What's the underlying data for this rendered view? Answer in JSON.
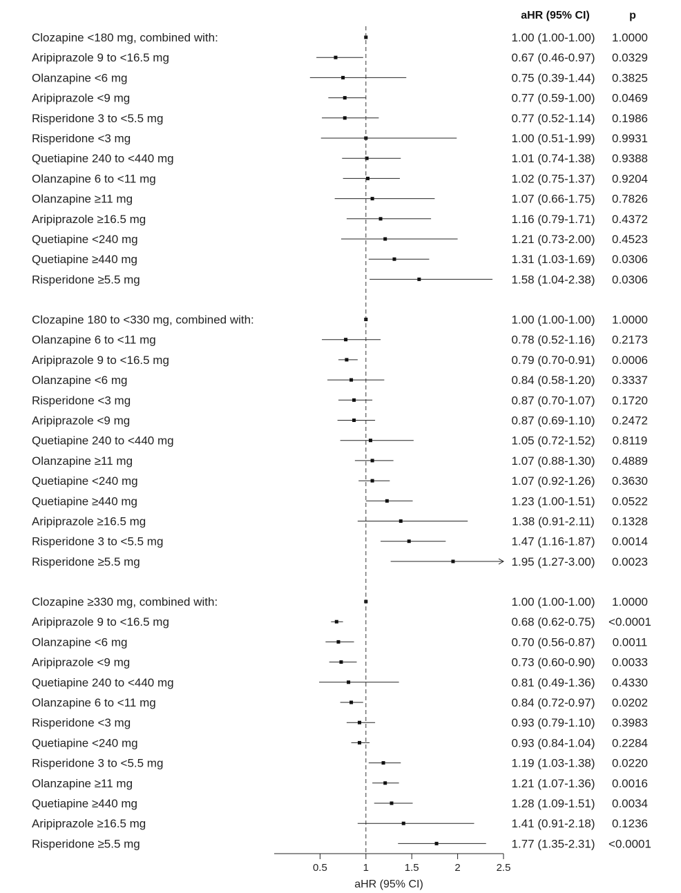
{
  "chart_data": {
    "type": "forest",
    "col_headers": {
      "estimate": "aHR (95% CI)",
      "p": "p"
    },
    "xlabel": "aHR (95% CI)",
    "xlim": [
      0,
      2.5
    ],
    "xticks": [
      "0.5",
      "1",
      "1.5",
      "2",
      "2.5"
    ],
    "reference_line": 1,
    "groups": [
      {
        "title": "Clozapine <180 mg, combined with:",
        "ref": {
          "hr": 1.0,
          "lo": 1.0,
          "hi": 1.0,
          "ci_text": "1.00 (1.00-1.00)",
          "p": "1.0000"
        },
        "rows": [
          {
            "label": "Aripiprazole 9 to <16.5 mg",
            "hr": 0.67,
            "lo": 0.46,
            "hi": 0.97,
            "ci_text": "0.67 (0.46-0.97)",
            "p": "0.0329"
          },
          {
            "label": "Olanzapine <6 mg",
            "hr": 0.75,
            "lo": 0.39,
            "hi": 1.44,
            "ci_text": "0.75 (0.39-1.44)",
            "p": "0.3825"
          },
          {
            "label": "Aripiprazole <9 mg",
            "hr": 0.77,
            "lo": 0.59,
            "hi": 1.0,
            "ci_text": "0.77 (0.59-1.00)",
            "p": "0.0469"
          },
          {
            "label": "Risperidone 3 to <5.5 mg",
            "hr": 0.77,
            "lo": 0.52,
            "hi": 1.14,
            "ci_text": "0.77 (0.52-1.14)",
            "p": "0.1986"
          },
          {
            "label": "Risperidone <3 mg",
            "hr": 1.0,
            "lo": 0.51,
            "hi": 1.99,
            "ci_text": "1.00 (0.51-1.99)",
            "p": "0.9931"
          },
          {
            "label": "Quetiapine 240 to <440 mg",
            "hr": 1.01,
            "lo": 0.74,
            "hi": 1.38,
            "ci_text": "1.01 (0.74-1.38)",
            "p": "0.9388"
          },
          {
            "label": "Olanzapine 6 to <11 mg",
            "hr": 1.02,
            "lo": 0.75,
            "hi": 1.37,
            "ci_text": "1.02 (0.75-1.37)",
            "p": "0.9204"
          },
          {
            "label": "Olanzapine ≥11 mg",
            "hr": 1.07,
            "lo": 0.66,
            "hi": 1.75,
            "ci_text": "1.07 (0.66-1.75)",
            "p": "0.7826"
          },
          {
            "label": "Aripiprazole ≥16.5 mg",
            "hr": 1.16,
            "lo": 0.79,
            "hi": 1.71,
            "ci_text": "1.16 (0.79-1.71)",
            "p": "0.4372"
          },
          {
            "label": "Quetiapine <240 mg",
            "hr": 1.21,
            "lo": 0.73,
            "hi": 2.0,
            "ci_text": "1.21 (0.73-2.00)",
            "p": "0.4523"
          },
          {
            "label": "Quetiapine ≥440 mg",
            "hr": 1.31,
            "lo": 1.03,
            "hi": 1.69,
            "ci_text": "1.31 (1.03-1.69)",
            "p": "0.0306"
          },
          {
            "label": "Risperidone ≥5.5 mg",
            "hr": 1.58,
            "lo": 1.04,
            "hi": 2.38,
            "ci_text": "1.58 (1.04-2.38)",
            "p": "0.0306"
          }
        ]
      },
      {
        "title": "Clozapine 180 to <330 mg, combined with:",
        "ref": {
          "hr": 1.0,
          "lo": 1.0,
          "hi": 1.0,
          "ci_text": "1.00 (1.00-1.00)",
          "p": "1.0000"
        },
        "rows": [
          {
            "label": "Olanzapine 6 to <11 mg",
            "hr": 0.78,
            "lo": 0.52,
            "hi": 1.16,
            "ci_text": "0.78 (0.52-1.16)",
            "p": "0.2173"
          },
          {
            "label": "Aripiprazole 9 to <16.5 mg",
            "hr": 0.79,
            "lo": 0.7,
            "hi": 0.91,
            "ci_text": "0.79 (0.70-0.91)",
            "p": "0.0006"
          },
          {
            "label": "Olanzapine <6 mg",
            "hr": 0.84,
            "lo": 0.58,
            "hi": 1.2,
            "ci_text": "0.84 (0.58-1.20)",
            "p": "0.3337"
          },
          {
            "label": "Risperidone <3 mg",
            "hr": 0.87,
            "lo": 0.7,
            "hi": 1.07,
            "ci_text": "0.87 (0.70-1.07)",
            "p": "0.1720"
          },
          {
            "label": "Aripiprazole <9 mg",
            "hr": 0.87,
            "lo": 0.69,
            "hi": 1.1,
            "ci_text": "0.87 (0.69-1.10)",
            "p": "0.2472"
          },
          {
            "label": "Quetiapine 240 to <440 mg",
            "hr": 1.05,
            "lo": 0.72,
            "hi": 1.52,
            "ci_text": "1.05 (0.72-1.52)",
            "p": "0.8119"
          },
          {
            "label": "Olanzapine ≥11 mg",
            "hr": 1.07,
            "lo": 0.88,
            "hi": 1.3,
            "ci_text": "1.07 (0.88-1.30)",
            "p": "0.4889"
          },
          {
            "label": "Quetiapine <240 mg",
            "hr": 1.07,
            "lo": 0.92,
            "hi": 1.26,
            "ci_text": "1.07 (0.92-1.26)",
            "p": "0.3630"
          },
          {
            "label": "Quetiapine ≥440 mg",
            "hr": 1.23,
            "lo": 1.0,
            "hi": 1.51,
            "ci_text": "1.23 (1.00-1.51)",
            "p": "0.0522"
          },
          {
            "label": "Aripiprazole ≥16.5 mg",
            "hr": 1.38,
            "lo": 0.91,
            "hi": 2.11,
            "ci_text": "1.38 (0.91-2.11)",
            "p": "0.1328"
          },
          {
            "label": "Risperidone 3 to <5.5 mg",
            "hr": 1.47,
            "lo": 1.16,
            "hi": 1.87,
            "ci_text": "1.47 (1.16-1.87)",
            "p": "0.0014"
          },
          {
            "label": "Risperidone ≥5.5 mg",
            "hr": 1.95,
            "lo": 1.27,
            "hi": 3.0,
            "ci_text": "1.95 (1.27-3.00)",
            "p": "0.0023",
            "truncated": true
          }
        ]
      },
      {
        "title": "Clozapine ≥330 mg, combined with:",
        "ref": {
          "hr": 1.0,
          "lo": 1.0,
          "hi": 1.0,
          "ci_text": "1.00 (1.00-1.00)",
          "p": "1.0000"
        },
        "rows": [
          {
            "label": "Aripiprazole 9 to <16.5 mg",
            "hr": 0.68,
            "lo": 0.62,
            "hi": 0.75,
            "ci_text": "0.68 (0.62-0.75)",
            "p": "<0.0001"
          },
          {
            "label": "Olanzapine <6 mg",
            "hr": 0.7,
            "lo": 0.56,
            "hi": 0.87,
            "ci_text": "0.70 (0.56-0.87)",
            "p": "0.0011"
          },
          {
            "label": "Aripiprazole <9 mg",
            "hr": 0.73,
            "lo": 0.6,
            "hi": 0.9,
            "ci_text": "0.73 (0.60-0.90)",
            "p": "0.0033"
          },
          {
            "label": "Quetiapine 240 to <440 mg",
            "hr": 0.81,
            "lo": 0.49,
            "hi": 1.36,
            "ci_text": "0.81 (0.49-1.36)",
            "p": "0.4330"
          },
          {
            "label": "Olanzapine 6 to <11 mg",
            "hr": 0.84,
            "lo": 0.72,
            "hi": 0.97,
            "ci_text": "0.84 (0.72-0.97)",
            "p": "0.0202"
          },
          {
            "label": "Risperidone <3 mg",
            "hr": 0.93,
            "lo": 0.79,
            "hi": 1.1,
            "ci_text": "0.93 (0.79-1.10)",
            "p": "0.3983"
          },
          {
            "label": "Quetiapine <240 mg",
            "hr": 0.93,
            "lo": 0.84,
            "hi": 1.04,
            "ci_text": "0.93 (0.84-1.04)",
            "p": "0.2284"
          },
          {
            "label": "Risperidone 3 to <5.5 mg",
            "hr": 1.19,
            "lo": 1.03,
            "hi": 1.38,
            "ci_text": "1.19 (1.03-1.38)",
            "p": "0.0220"
          },
          {
            "label": "Olanzapine ≥11 mg",
            "hr": 1.21,
            "lo": 1.07,
            "hi": 1.36,
            "ci_text": "1.21 (1.07-1.36)",
            "p": "0.0016"
          },
          {
            "label": "Quetiapine ≥440 mg",
            "hr": 1.28,
            "lo": 1.09,
            "hi": 1.51,
            "ci_text": "1.28 (1.09-1.51)",
            "p": "0.0034"
          },
          {
            "label": "Aripiprazole ≥16.5 mg",
            "hr": 1.41,
            "lo": 0.91,
            "hi": 2.18,
            "ci_text": "1.41 (0.91-2.18)",
            "p": "0.1236"
          },
          {
            "label": "Risperidone ≥5.5 mg",
            "hr": 1.77,
            "lo": 1.35,
            "hi": 2.31,
            "ci_text": "1.77 (1.35-2.31)",
            "p": "<0.0001"
          }
        ]
      }
    ]
  }
}
